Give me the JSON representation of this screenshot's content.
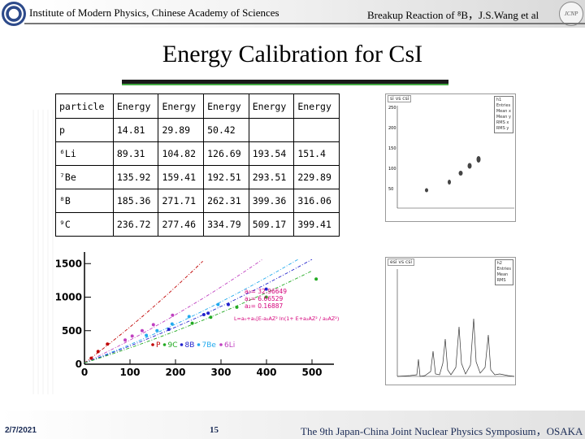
{
  "header": {
    "institute": "Institute of Modern Physics, Chinese Academy of Sciences",
    "talk": "Breakup Reaction of ⁸B，J.S.Wang et al"
  },
  "title": "Energy Calibration for CsI",
  "table": {
    "headers": [
      "particle",
      "Energy",
      "Energy",
      "Energy",
      "Energy",
      "Energy"
    ],
    "rows": [
      [
        "p",
        "14.81",
        "29.89",
        "50.42",
        "",
        ""
      ],
      [
        "⁶Li",
        "89.31",
        "104.82",
        "126.69",
        "193.54",
        "151.4"
      ],
      [
        "⁷Be",
        "135.92",
        "159.41",
        "192.51",
        "293.51",
        "229.89"
      ],
      [
        "⁸B",
        "185.36",
        "271.71",
        "262.31",
        "399.36",
        "316.06"
      ],
      [
        "⁹C",
        "236.72",
        "277.46",
        "334.79",
        "509.17",
        "399.41"
      ]
    ]
  },
  "plot1": {
    "tag": "si vs csi",
    "stats_title": "h1",
    "stats": [
      "Entries",
      "Mean x",
      "Mean y",
      "RMS x",
      "RMS y"
    ],
    "y_ticks": [
      "250",
      "200",
      "150",
      "100",
      "50"
    ]
  },
  "plot2": {
    "tag": "esi vs csi",
    "stats_title": "h2",
    "stats": [
      "Entries",
      "Mean",
      "RMS"
    ]
  },
  "chart_data": {
    "type": "scatter",
    "title": "",
    "xlabel": "",
    "ylabel": "",
    "xlim": [
      0,
      500
    ],
    "ylim": [
      0,
      1600
    ],
    "x_ticks": [
      "0",
      "100",
      "200",
      "300",
      "400",
      "500"
    ],
    "y_ticks": [
      "0",
      "500",
      "1000",
      "1500"
    ],
    "fit_params": [
      "a₀= 32.96649",
      "a₁= 6.66529",
      "a₂= 0.16887"
    ],
    "formula": "L=a₀+a₁[E-a₂AZ² ln(1+ E+a₂AZ² / a₂AZ²)]",
    "legend": [
      {
        "label": "P",
        "color": "#c00000"
      },
      {
        "label": "9C",
        "color": "#22aa22"
      },
      {
        "label": "8B",
        "color": "#2222cc"
      },
      {
        "label": "7Be",
        "color": "#22aaee"
      },
      {
        "label": "6Li",
        "color": "#c040c0"
      }
    ],
    "series": [
      {
        "name": "P",
        "color": "#c00000",
        "x": [
          14.81,
          29.89,
          50.42
        ],
        "y": [
          90,
          190,
          300
        ]
      },
      {
        "name": "6Li",
        "color": "#c040c0",
        "x": [
          89.31,
          104.82,
          126.69,
          151.4,
          193.54
        ],
        "y": [
          360,
          420,
          500,
          590,
          730
        ]
      },
      {
        "name": "7Be",
        "color": "#22aaee",
        "x": [
          135.92,
          159.41,
          192.51,
          229.89,
          293.51
        ],
        "y": [
          430,
          500,
          600,
          710,
          890
        ]
      },
      {
        "name": "8B",
        "color": "#2222cc",
        "x": [
          185.36,
          262.31,
          271.71,
          316.06,
          399.36
        ],
        "y": [
          520,
          740,
          760,
          890,
          1120
        ]
      },
      {
        "name": "9C",
        "color": "#22aa22",
        "x": [
          236.72,
          277.46,
          334.79,
          399.41,
          509.17
        ],
        "y": [
          610,
          700,
          850,
          1000,
          1270
        ]
      }
    ]
  },
  "footer": {
    "date": "2/7/2021",
    "page": "15",
    "conference": "The 9th Japan-China Joint Nuclear Physics Symposium，OSAKA"
  }
}
